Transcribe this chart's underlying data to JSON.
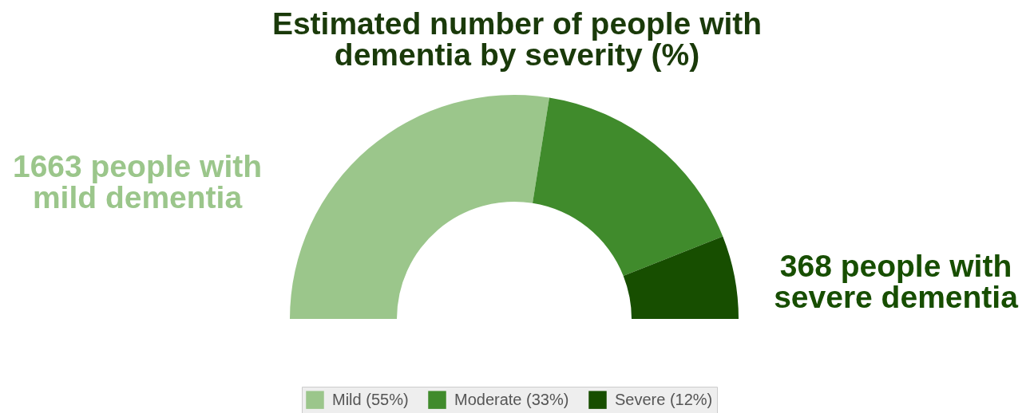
{
  "chart_data": {
    "type": "donut",
    "title": "Estimated number of people with dementia by severity (%)",
    "categories": [
      "Mild (55%)",
      "Moderate (33%)",
      "Severe (12%)"
    ],
    "values": [
      55,
      33,
      12
    ],
    "colors": [
      "#9bc68b",
      "#408b2c",
      "#174e00"
    ],
    "annotations": [
      {
        "text": "1663 people with mild dementia",
        "x": "Mild (55%)"
      },
      {
        "text": "368 people with severe dementia",
        "x": "Severe (12%)"
      }
    ],
    "legend": "bottom"
  }
}
